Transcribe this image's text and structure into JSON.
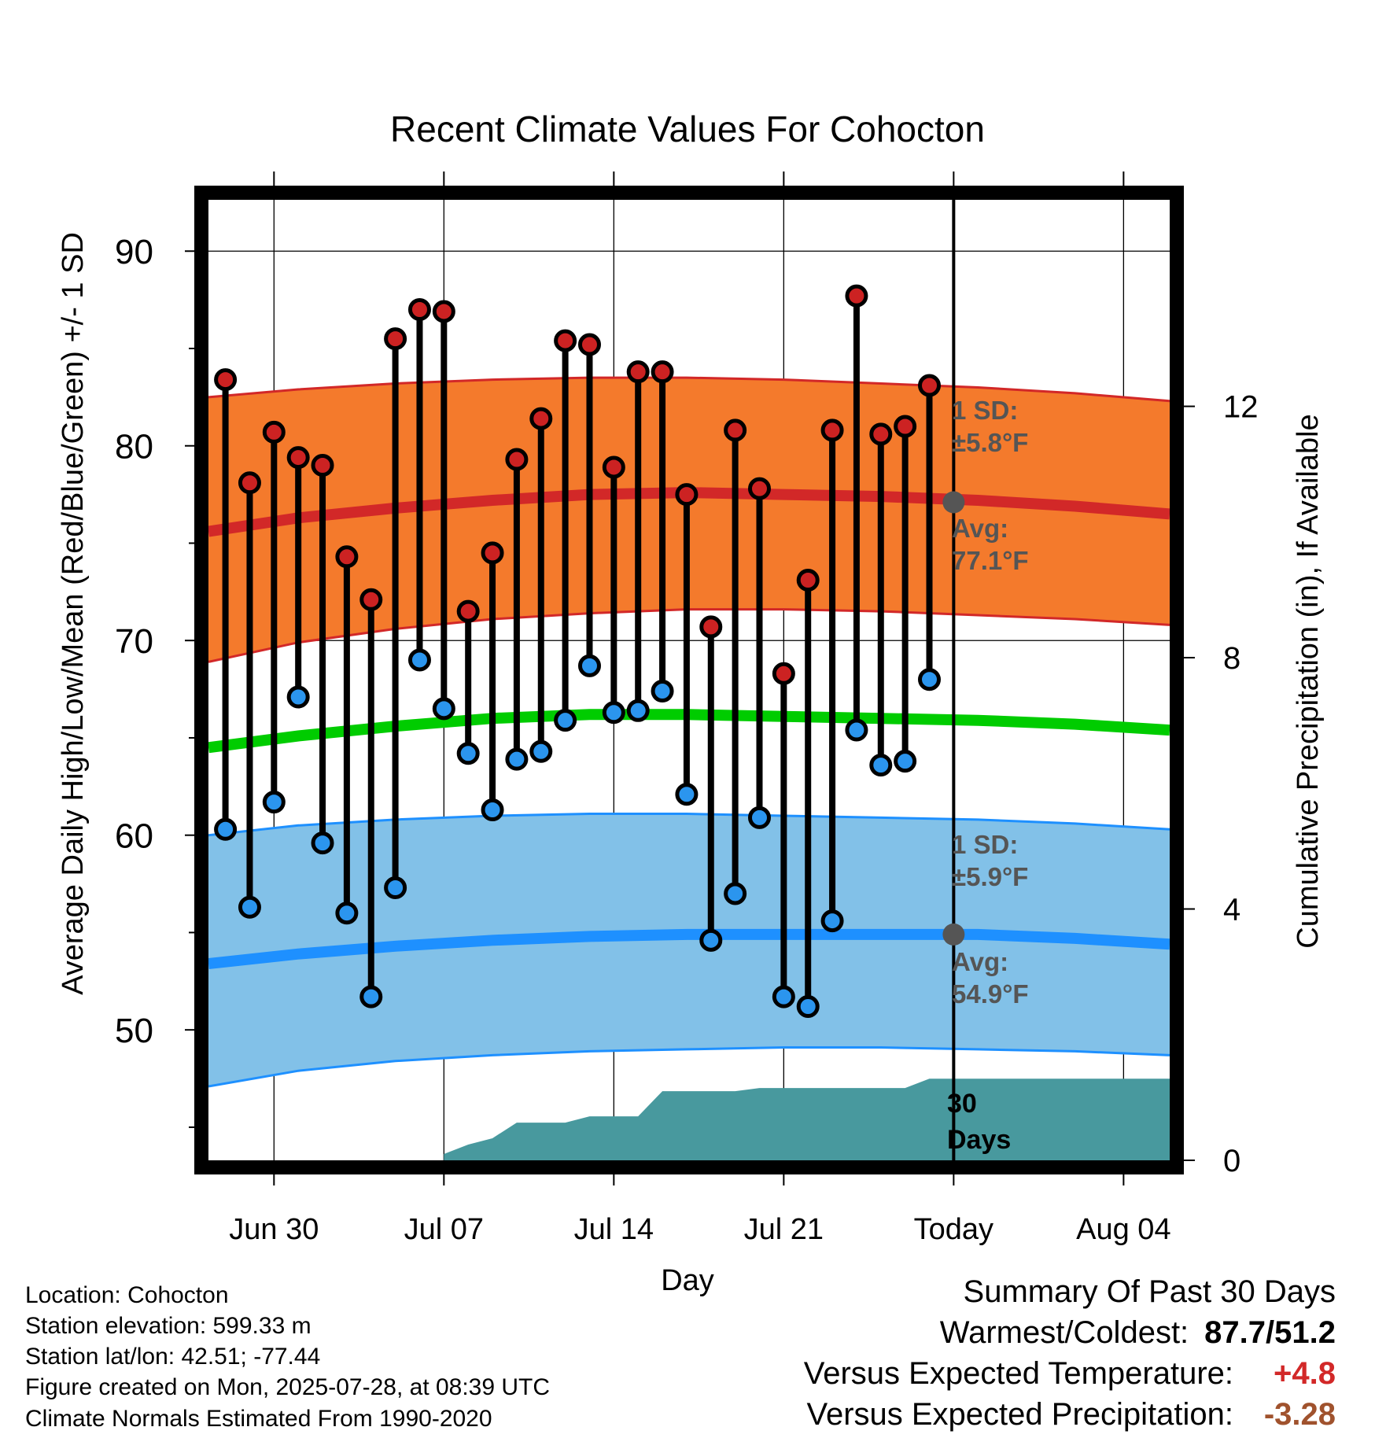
{
  "chart_data": {
    "type": "line",
    "title": "Recent Climate Values For Cohocton",
    "xlabel": "Day",
    "ylabel": "Average Daily High/Low/Mean (Red/Blue/Green) +/- 1 SD",
    "y2label": "Cumulative Precipitation (in), If Available",
    "ylim": [
      43.3,
      93
    ],
    "y2lim": [
      0,
      15.4
    ],
    "yticks": [
      50,
      60,
      70,
      80,
      90
    ],
    "y2ticks": [
      0,
      4,
      8,
      12
    ],
    "x_tick_labels": [
      {
        "day": 2,
        "label": "Jun 30"
      },
      {
        "day": 9,
        "label": "Jul 07"
      },
      {
        "day": 16,
        "label": "Jul 14"
      },
      {
        "day": 23,
        "label": "Jul 21"
      },
      {
        "day": 30,
        "label": "Today"
      },
      {
        "day": 37,
        "label": "Aug 04"
      }
    ],
    "xlim": [
      -0.7,
      38.9
    ],
    "today_day": 30,
    "today_label": "30 Days",
    "daily": {
      "days": [
        0,
        1,
        2,
        3,
        4,
        5,
        6,
        7,
        8,
        9,
        10,
        11,
        12,
        13,
        14,
        15,
        16,
        17,
        18,
        19,
        20,
        21,
        22,
        23,
        24,
        25,
        26,
        27,
        28,
        29
      ],
      "highs": [
        83.4,
        78.1,
        80.7,
        79.4,
        79.0,
        74.3,
        72.1,
        85.5,
        87.0,
        86.9,
        71.5,
        74.5,
        79.3,
        81.4,
        85.4,
        85.2,
        78.9,
        83.8,
        83.8,
        77.5,
        70.7,
        80.8,
        77.8,
        68.3,
        73.1,
        80.8,
        87.7,
        80.6,
        81.0,
        83.1
      ],
      "lows": [
        60.3,
        56.3,
        61.7,
        67.1,
        59.6,
        56.0,
        51.7,
        57.3,
        69.0,
        66.5,
        64.2,
        61.3,
        63.9,
        64.3,
        65.9,
        68.7,
        66.3,
        66.4,
        67.4,
        62.1,
        54.6,
        57.0,
        60.9,
        51.7,
        51.2,
        55.6,
        65.4,
        63.6,
        63.8,
        68.0
      ]
    },
    "normals": {
      "days": [
        -0.7,
        3,
        7,
        11,
        15,
        19,
        23,
        27,
        31,
        35,
        38.9
      ],
      "high_avg": [
        75.6,
        76.3,
        76.8,
        77.2,
        77.5,
        77.6,
        77.5,
        77.4,
        77.2,
        76.9,
        76.5
      ],
      "high_plus_sd": [
        82.5,
        82.9,
        83.2,
        83.4,
        83.5,
        83.5,
        83.4,
        83.2,
        83.0,
        82.7,
        82.3
      ],
      "high_minus_sd": [
        68.9,
        69.9,
        70.6,
        71.1,
        71.4,
        71.6,
        71.6,
        71.5,
        71.3,
        71.1,
        70.8
      ],
      "mean": [
        64.5,
        65.1,
        65.6,
        66.0,
        66.2,
        66.2,
        66.1,
        66.0,
        65.9,
        65.7,
        65.4
      ],
      "low_avg": [
        53.4,
        53.9,
        54.3,
        54.6,
        54.8,
        54.9,
        54.9,
        54.9,
        54.9,
        54.7,
        54.4
      ],
      "low_plus_sd": [
        60.0,
        60.5,
        60.8,
        61.0,
        61.1,
        61.1,
        61.0,
        60.9,
        60.8,
        60.6,
        60.3
      ],
      "low_minus_sd": [
        47.1,
        47.9,
        48.4,
        48.7,
        48.9,
        49.0,
        49.1,
        49.1,
        49.0,
        48.9,
        48.7
      ]
    },
    "precip": {
      "days": [
        9,
        10,
        11,
        12,
        13,
        14,
        15,
        16,
        17,
        18,
        19,
        20,
        21,
        22,
        23,
        24,
        25,
        26,
        27,
        28,
        29,
        30,
        38.9
      ],
      "cumulative": [
        0.1,
        0.25,
        0.35,
        0.6,
        0.6,
        0.6,
        0.7,
        0.7,
        0.7,
        1.1,
        1.1,
        1.1,
        1.1,
        1.15,
        1.15,
        1.15,
        1.15,
        1.15,
        1.15,
        1.15,
        1.3,
        1.3,
        1.3
      ]
    },
    "annotations": {
      "high_sd_label": "1 SD:",
      "high_sd_value": "±5.8°F",
      "high_avg_label": "Avg:",
      "high_avg_value": "77.1°F",
      "low_sd_label": "1 SD:",
      "low_sd_value": "±5.9°F",
      "low_avg_label": "Avg:",
      "low_avg_value": "54.9°F"
    },
    "colors": {
      "high_band": "#f47a2c",
      "high_line": "#d22828",
      "high_dot": "#cc2222",
      "low_band": "#82c1e8",
      "low_line": "#1e90ff",
      "low_dot": "#2b95ee",
      "mean_line": "#00cc00",
      "precip": "#48999e",
      "annotation": "#555555"
    }
  },
  "info": {
    "location": "Location: Cohocton",
    "elevation": "Station elevation: 599.33 m",
    "latlon": "Station lat/lon: 42.51; -77.44",
    "created": "Figure created on Mon, 2025-07-28, at 08:39 UTC",
    "normals": "Climate Normals Estimated From 1990-2020"
  },
  "summary": {
    "title": "Summary Of Past 30 Days",
    "warmest_label": "Warmest/Coldest:",
    "warmest_value": "87.7/51.2",
    "temp_label": "Versus Expected Temperature:",
    "temp_value": "+4.8",
    "temp_color": "#d22828",
    "precip_label": "Versus Expected Precipitation:",
    "precip_value": "-3.28",
    "precip_color": "#a0522d"
  }
}
